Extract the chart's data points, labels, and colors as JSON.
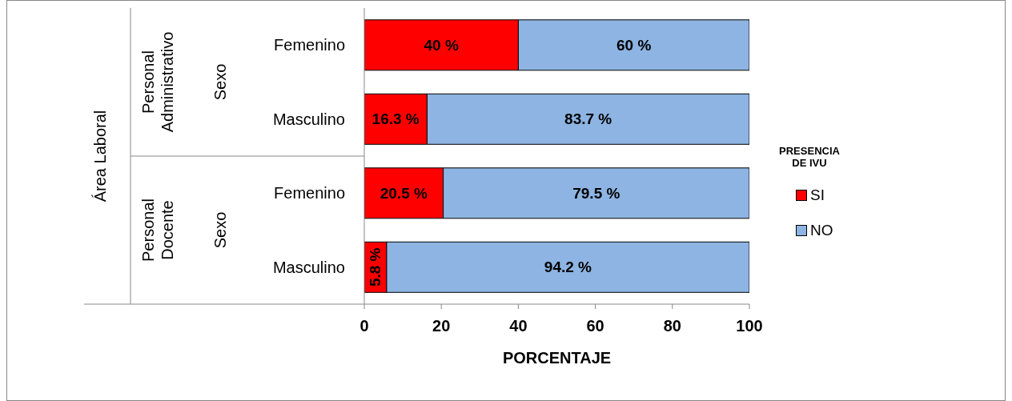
{
  "chart_data": {
    "type": "bar",
    "orientation": "horizontal",
    "stacked": true,
    "categories": [
      "Femenino",
      "Masculino",
      "Femenino",
      "Masculino"
    ],
    "series": [
      {
        "name": "SI",
        "color": "#ff0000",
        "values": [
          40,
          16.3,
          20.5,
          5.8
        ],
        "value_labels": [
          "40 %",
          "16.3 %",
          "20.5 %",
          "5.8 %"
        ]
      },
      {
        "name": "NO",
        "color": "#8db4e2",
        "values": [
          60,
          83.7,
          79.5,
          94.2
        ],
        "value_labels": [
          "60 %",
          "83.7 %",
          "79.5 %",
          "94.2 %"
        ]
      }
    ],
    "xlim": [
      0,
      100
    ],
    "xticks": [
      0,
      20,
      40,
      60,
      80,
      100
    ],
    "xlabel": "PORCENTAJE",
    "annotations": [
      "Área Laboral",
      "Personal Administrativo",
      "Sexo",
      "Personal Docente",
      "Sexo"
    ],
    "legend": "right",
    "legend_title": "PRESENCIA DE IVU",
    "grid": false
  }
}
